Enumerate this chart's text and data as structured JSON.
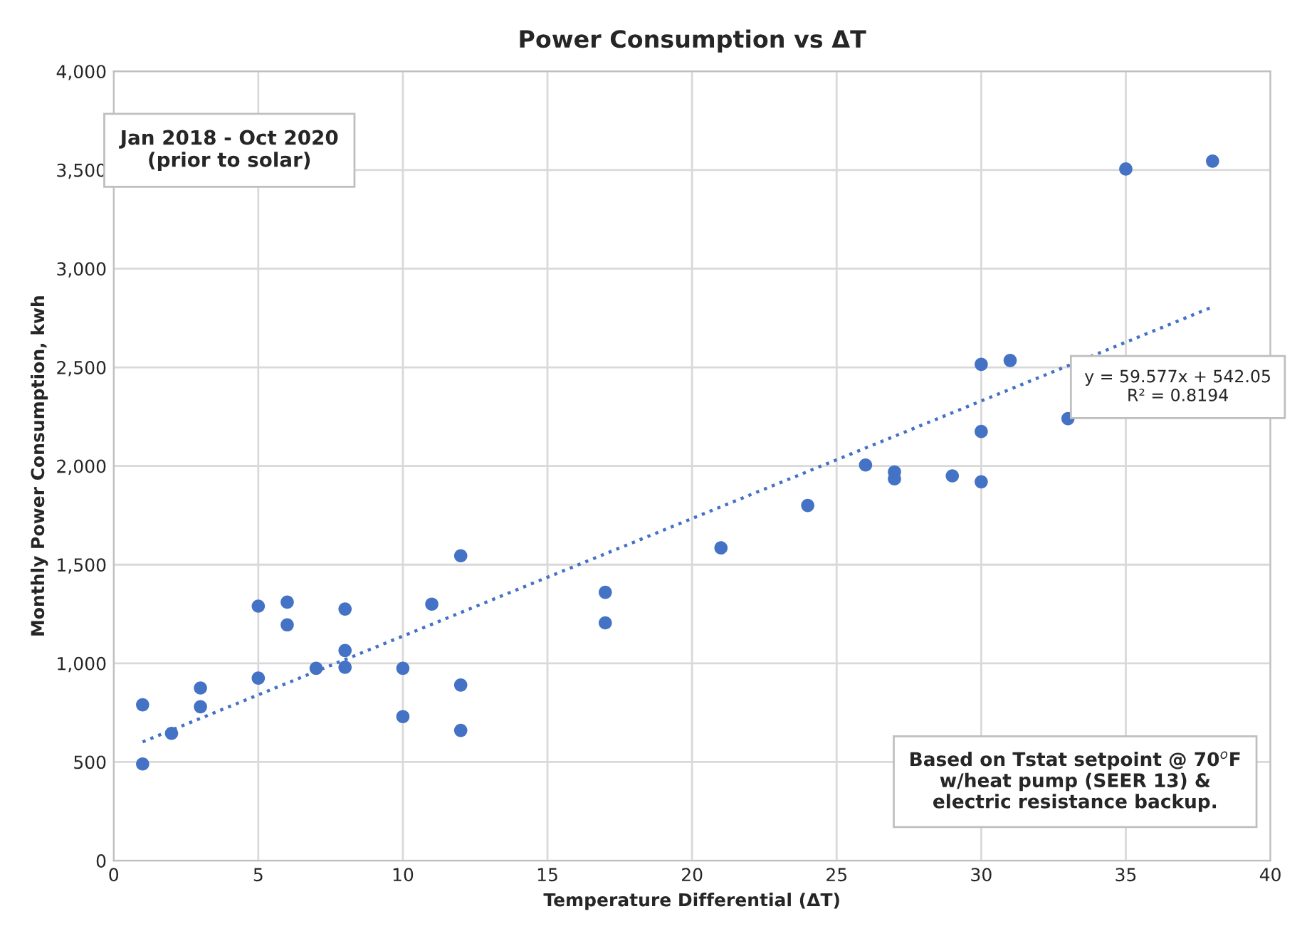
{
  "chart_data": {
    "type": "scatter",
    "title": "Power Consumption vs ΔT",
    "xlabel": "Temperature Differential (ΔT)",
    "ylabel": "Monthly Power Consumption, kwh",
    "series": [
      {
        "color": "#4472c4",
        "marker": "circle",
        "x": [
          1,
          1,
          2,
          3,
          3,
          5,
          5,
          6,
          6,
          7,
          8,
          8,
          8,
          10,
          10,
          11,
          12,
          12,
          12,
          17,
          17,
          21,
          24,
          26,
          27,
          27,
          29,
          30,
          30,
          30,
          31,
          33,
          35,
          38
        ],
        "values": [
          790,
          490,
          645,
          875,
          780,
          1290,
          925,
          1310,
          1195,
          975,
          1275,
          1065,
          980,
          975,
          730,
          1300,
          1545,
          890,
          660,
          1360,
          1205,
          1585,
          1800,
          2005,
          1970,
          1935,
          1950,
          2515,
          2175,
          1920,
          2535,
          2240,
          3505,
          3545
        ]
      },
      {
        "type": "line",
        "color": "#4472c4",
        "line_style": "dotted",
        "marker": "none",
        "x": [
          1,
          38
        ],
        "values": [
          602,
          2806
        ]
      }
    ],
    "annotations": [
      "Jan 2018 - Oct 2020\n(prior to solar)",
      "y = 59.577x + 542.05\nR² = 0.8194",
      "Based on Tstat setpoint @ 70$^{o}$F\nw/heat pump (SEER 13) &\nelectric resistance backup."
    ],
    "xlim": [
      0,
      40
    ],
    "xticks": [
      0,
      5,
      10,
      15,
      20,
      25,
      30,
      35,
      40
    ],
    "ylim": [
      0,
      4000
    ],
    "yticks": [
      {
        "value": 0,
        "label": "0"
      },
      {
        "value": 500,
        "label": "500"
      },
      {
        "value": 1000,
        "label": "1,000"
      },
      {
        "value": 1500,
        "label": "1,500"
      },
      {
        "value": 2000,
        "label": "2,000"
      },
      {
        "value": 2500,
        "label": "2,500"
      },
      {
        "value": 3000,
        "label": "3,000"
      },
      {
        "value": 3500,
        "label": "3,500"
      },
      {
        "value": 4000,
        "label": "4,000"
      }
    ],
    "grid": true,
    "legend": false
  }
}
